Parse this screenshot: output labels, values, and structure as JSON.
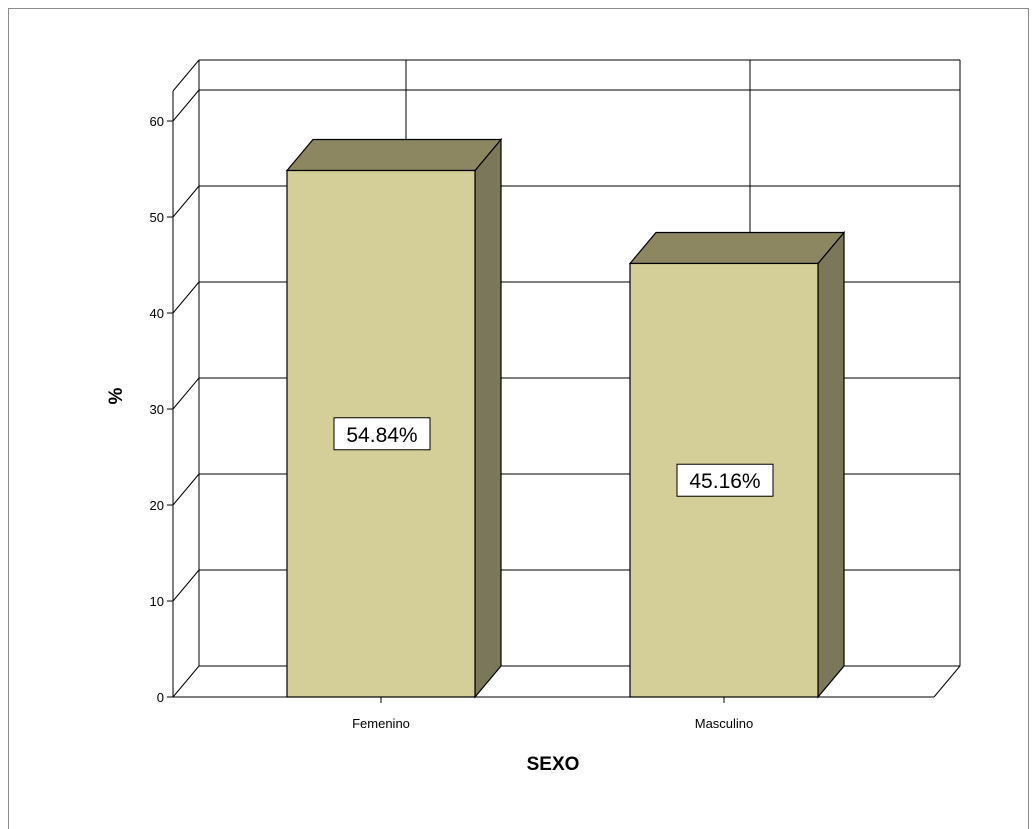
{
  "chart_data": {
    "type": "bar",
    "categories": [
      "Femenino",
      "Masculino"
    ],
    "values": [
      54.84,
      45.16
    ],
    "data_labels": [
      "54.84%",
      "45.16%"
    ],
    "xlabel": "SEXO",
    "ylabel": "%",
    "ylim": [
      0,
      60
    ],
    "yticks": [
      0,
      10,
      20,
      30,
      40,
      50,
      60
    ],
    "grid": true,
    "legend": "none",
    "style": "3d",
    "colors": {
      "bar_front": "#d4ce98",
      "bar_top": "#8c8760",
      "bar_side": "#7a775b",
      "edge": "#000000"
    }
  }
}
